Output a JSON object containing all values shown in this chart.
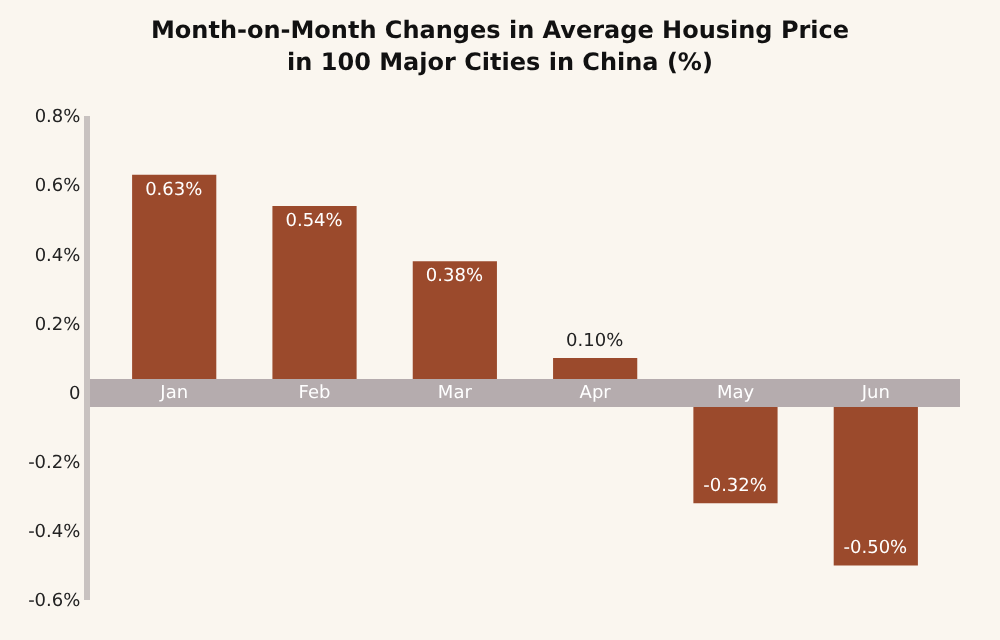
{
  "chart_data": {
    "type": "bar",
    "title": "Month-on-Month Changes in Average Housing Price\nin 100 Major Cities in China (%)",
    "categories": [
      "Jan",
      "Feb",
      "Mar",
      "Apr",
      "May",
      "Jun"
    ],
    "values": [
      0.63,
      0.54,
      0.38,
      0.1,
      -0.32,
      -0.5
    ],
    "value_labels": [
      "0.63%",
      "0.54%",
      "0.38%",
      "0.10%",
      "-0.32%",
      "-0.50%"
    ],
    "color": "#9b4a2c",
    "ylim": [
      -0.6,
      0.8
    ],
    "yticks": [
      {
        "value": -0.6,
        "label": "-0.6%"
      },
      {
        "value": -0.4,
        "label": "-0.4%"
      },
      {
        "value": -0.2,
        "label": "-0.2%"
      },
      0,
      {
        "value": 0.2,
        "label": "0.2%"
      },
      {
        "value": 0.4,
        "label": "0.4%"
      },
      {
        "value": 0.6,
        "label": "0.6%"
      },
      {
        "value": 0.8,
        "label": "0.8%"
      }
    ],
    "grid": false
  }
}
